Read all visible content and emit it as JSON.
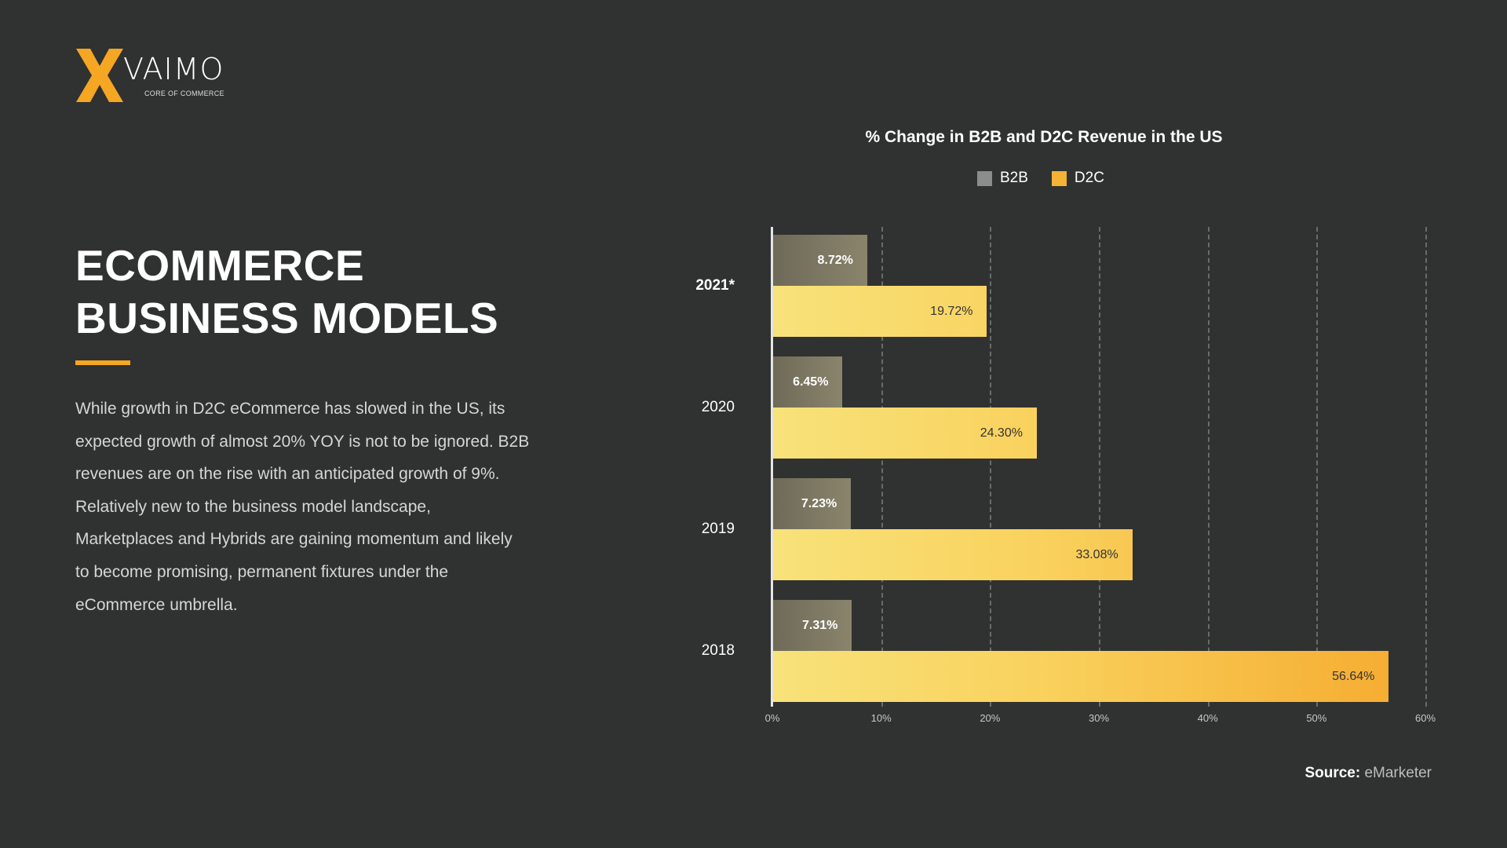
{
  "logo": {
    "wordmark": "VAIMO",
    "tagline": "CORE OF COMMERCE",
    "color": "#f5a623"
  },
  "heading": {
    "line1": "ECOMMERCE",
    "line2": "BUSINESS MODELS"
  },
  "paragraph": "While growth in D2C eCommerce has slowed in the US, its expected growth of almost 20% YOY is not to be ignored. B2B revenues are on the rise with an anticipated growth of 9%. Relatively new to the business model landscape, Marketplaces and Hybrids are gaining momentum and likely to become promising, permanent fixtures under the eCommerce umbrella.",
  "source": {
    "label": "Source:",
    "value": "eMarketer"
  },
  "chart_data": {
    "type": "bar",
    "orientation": "horizontal",
    "title": "% Change in B2B and D2C Revenue in the US",
    "categories": [
      "2021*",
      "2020",
      "2019",
      "2018"
    ],
    "series": [
      {
        "name": "B2B",
        "color": "#8a846c",
        "values": [
          8.72,
          6.45,
          7.23,
          7.31
        ],
        "labels": [
          "8.72%",
          "6.45%",
          "7.23%",
          "7.31%"
        ]
      },
      {
        "name": "D2C",
        "color": "#f5b335",
        "values": [
          19.72,
          24.3,
          33.08,
          56.64
        ],
        "labels": [
          "19.72%",
          "24.30%",
          "33.08%",
          "56.64%"
        ]
      }
    ],
    "xlim": [
      0,
      60
    ],
    "xticks": [
      "0%",
      "10%",
      "20%",
      "30%",
      "40%",
      "50%",
      "60%"
    ],
    "grid": "vertical dashed",
    "legend": "top"
  }
}
